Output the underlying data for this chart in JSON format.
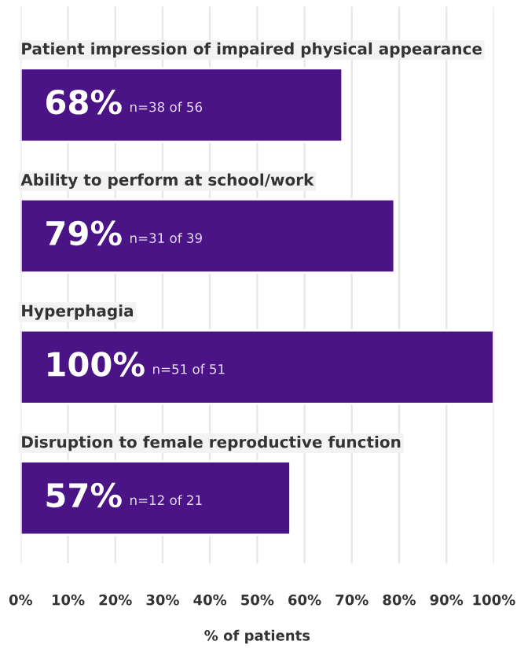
{
  "chart_data": {
    "type": "bar",
    "orientation": "horizontal",
    "xlabel": "% of patients",
    "categories": [
      "Patient impression of impaired physical appearance",
      "Ability to perform at school/work",
      "Hyperphagia",
      "Disruption to female reproductive function"
    ],
    "values": [
      68,
      79,
      100,
      57
    ],
    "color": "#4a1486",
    "value_labels": [
      "68%",
      "79%",
      "100%",
      "57%"
    ],
    "annotations": [
      "n=38 of 56",
      "n=31 of 39",
      "n=51 of 51",
      "n=12 of 21"
    ],
    "xlim": [
      0,
      100
    ],
    "xticks": [
      {
        "value": 0,
        "label": "0%"
      },
      {
        "value": 10,
        "label": "10%"
      },
      {
        "value": 20,
        "label": "20%"
      },
      {
        "value": 30,
        "label": "30%"
      },
      {
        "value": 40,
        "label": "40%"
      },
      {
        "value": 50,
        "label": "50%"
      },
      {
        "value": 60,
        "label": "60%"
      },
      {
        "value": 70,
        "label": "70%"
      },
      {
        "value": 80,
        "label": "80%"
      },
      {
        "value": 90,
        "label": "90%"
      },
      {
        "value": 100,
        "label": "100%"
      }
    ],
    "grid": "x",
    "legend": false
  }
}
